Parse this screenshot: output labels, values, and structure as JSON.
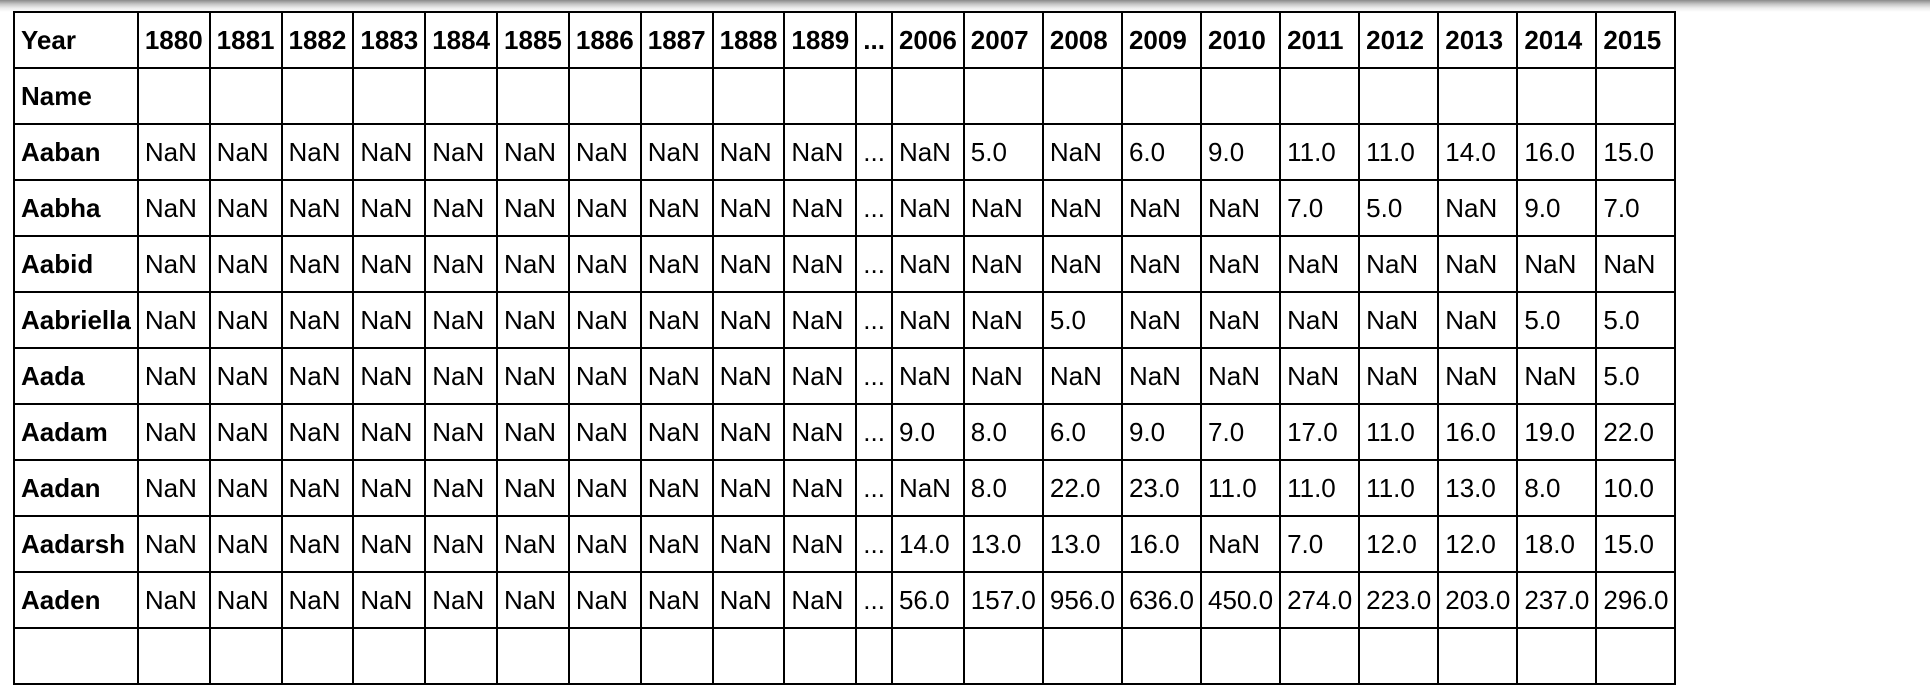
{
  "columns": [
    "1880",
    "1881",
    "1882",
    "1883",
    "1884",
    "1885",
    "1886",
    "1887",
    "1888",
    "1889",
    "...",
    "2006",
    "2007",
    "2008",
    "2009",
    "2010",
    "2011",
    "2012",
    "2013",
    "2014",
    "2015"
  ],
  "header": {
    "columns_label": "Year",
    "index_label": "Name"
  },
  "rows": [
    {
      "name": "Aaban",
      "values": [
        "NaN",
        "NaN",
        "NaN",
        "NaN",
        "NaN",
        "NaN",
        "NaN",
        "NaN",
        "NaN",
        "NaN",
        "...",
        "NaN",
        "5.0",
        "NaN",
        "6.0",
        "9.0",
        "11.0",
        "11.0",
        "14.0",
        "16.0",
        "15.0"
      ]
    },
    {
      "name": "Aabha",
      "values": [
        "NaN",
        "NaN",
        "NaN",
        "NaN",
        "NaN",
        "NaN",
        "NaN",
        "NaN",
        "NaN",
        "NaN",
        "...",
        "NaN",
        "NaN",
        "NaN",
        "NaN",
        "NaN",
        "7.0",
        "5.0",
        "NaN",
        "9.0",
        "7.0"
      ]
    },
    {
      "name": "Aabid",
      "values": [
        "NaN",
        "NaN",
        "NaN",
        "NaN",
        "NaN",
        "NaN",
        "NaN",
        "NaN",
        "NaN",
        "NaN",
        "...",
        "NaN",
        "NaN",
        "NaN",
        "NaN",
        "NaN",
        "NaN",
        "NaN",
        "NaN",
        "NaN",
        "NaN"
      ]
    },
    {
      "name": "Aabriella",
      "values": [
        "NaN",
        "NaN",
        "NaN",
        "NaN",
        "NaN",
        "NaN",
        "NaN",
        "NaN",
        "NaN",
        "NaN",
        "...",
        "NaN",
        "NaN",
        "5.0",
        "NaN",
        "NaN",
        "NaN",
        "NaN",
        "NaN",
        "5.0",
        "5.0"
      ]
    },
    {
      "name": "Aada",
      "values": [
        "NaN",
        "NaN",
        "NaN",
        "NaN",
        "NaN",
        "NaN",
        "NaN",
        "NaN",
        "NaN",
        "NaN",
        "...",
        "NaN",
        "NaN",
        "NaN",
        "NaN",
        "NaN",
        "NaN",
        "NaN",
        "NaN",
        "NaN",
        "5.0"
      ]
    },
    {
      "name": "Aadam",
      "values": [
        "NaN",
        "NaN",
        "NaN",
        "NaN",
        "NaN",
        "NaN",
        "NaN",
        "NaN",
        "NaN",
        "NaN",
        "...",
        "9.0",
        "8.0",
        "6.0",
        "9.0",
        "7.0",
        "17.0",
        "11.0",
        "16.0",
        "19.0",
        "22.0"
      ]
    },
    {
      "name": "Aadan",
      "values": [
        "NaN",
        "NaN",
        "NaN",
        "NaN",
        "NaN",
        "NaN",
        "NaN",
        "NaN",
        "NaN",
        "NaN",
        "...",
        "NaN",
        "8.0",
        "22.0",
        "23.0",
        "11.0",
        "11.0",
        "11.0",
        "13.0",
        "8.0",
        "10.0"
      ]
    },
    {
      "name": "Aadarsh",
      "values": [
        "NaN",
        "NaN",
        "NaN",
        "NaN",
        "NaN",
        "NaN",
        "NaN",
        "NaN",
        "NaN",
        "NaN",
        "...",
        "14.0",
        "13.0",
        "13.0",
        "16.0",
        "NaN",
        "7.0",
        "12.0",
        "12.0",
        "18.0",
        "15.0"
      ]
    },
    {
      "name": "Aaden",
      "values": [
        "NaN",
        "NaN",
        "NaN",
        "NaN",
        "NaN",
        "NaN",
        "NaN",
        "NaN",
        "NaN",
        "NaN",
        "...",
        "56.0",
        "157.0",
        "956.0",
        "636.0",
        "450.0",
        "274.0",
        "223.0",
        "203.0",
        "237.0",
        "296.0"
      ]
    }
  ]
}
